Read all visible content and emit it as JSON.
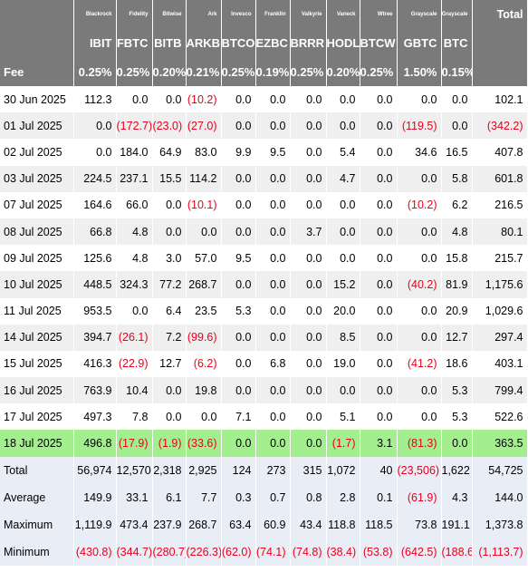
{
  "columns": [
    {
      "issuer": "Blackrock",
      "ticker": "IBIT",
      "fee": "0.25%"
    },
    {
      "issuer": "Fidelity",
      "ticker": "FBTC",
      "fee": "0.25%"
    },
    {
      "issuer": "Bitwise",
      "ticker": "BITB",
      "fee": "0.20%"
    },
    {
      "issuer": "Ark",
      "ticker": "ARKB",
      "fee": "0.21%"
    },
    {
      "issuer": "Invesco",
      "ticker": "BTCO",
      "fee": "0.25%"
    },
    {
      "issuer": "Franklin",
      "ticker": "EZBC",
      "fee": "0.19%"
    },
    {
      "issuer": "Valkyrie",
      "ticker": "BRRR",
      "fee": "0.25%"
    },
    {
      "issuer": "Vaneck",
      "ticker": "HODL",
      "fee": "0.20%"
    },
    {
      "issuer": "Wtree",
      "ticker": "BTCW",
      "fee": "0.25%"
    },
    {
      "issuer": "Grayscale",
      "ticker": "GBTC",
      "fee": "1.50%"
    },
    {
      "issuer": "Grayscale",
      "ticker": "BTC",
      "fee": "0.15%"
    }
  ],
  "header": {
    "total_label": "Total",
    "fee_label": "Fee"
  },
  "rows": [
    {
      "date": "30 Jun 2025",
      "values": [
        "112.3",
        "0.0",
        "0.0",
        "(10.2)",
        "0.0",
        "0.0",
        "0.0",
        "0.0",
        "0.0",
        "0.0",
        "0.0"
      ],
      "total": "102.1"
    },
    {
      "date": "01 Jul 2025",
      "values": [
        "0.0",
        "(172.7)",
        "(23.0)",
        "(27.0)",
        "0.0",
        "0.0",
        "0.0",
        "0.0",
        "0.0",
        "(119.5)",
        "0.0"
      ],
      "total": "(342.2)"
    },
    {
      "date": "02 Jul 2025",
      "values": [
        "0.0",
        "184.0",
        "64.9",
        "83.0",
        "9.9",
        "9.5",
        "0.0",
        "5.4",
        "0.0",
        "34.6",
        "16.5"
      ],
      "total": "407.8"
    },
    {
      "date": "03 Jul 2025",
      "values": [
        "224.5",
        "237.1",
        "15.5",
        "114.2",
        "0.0",
        "0.0",
        "0.0",
        "4.7",
        "0.0",
        "0.0",
        "5.8"
      ],
      "total": "601.8"
    },
    {
      "date": "07 Jul 2025",
      "values": [
        "164.6",
        "66.0",
        "0.0",
        "(10.1)",
        "0.0",
        "0.0",
        "0.0",
        "0.0",
        "0.0",
        "(10.2)",
        "6.2"
      ],
      "total": "216.5"
    },
    {
      "date": "08 Jul 2025",
      "values": [
        "66.8",
        "4.8",
        "0.0",
        "0.0",
        "0.0",
        "0.0",
        "3.7",
        "0.0",
        "0.0",
        "0.0",
        "4.8"
      ],
      "total": "80.1"
    },
    {
      "date": "09 Jul 2025",
      "values": [
        "125.6",
        "4.8",
        "3.0",
        "57.0",
        "9.5",
        "0.0",
        "0.0",
        "0.0",
        "0.0",
        "0.0",
        "15.8"
      ],
      "total": "215.7"
    },
    {
      "date": "10 Jul 2025",
      "values": [
        "448.5",
        "324.3",
        "77.2",
        "268.7",
        "0.0",
        "0.0",
        "0.0",
        "15.2",
        "0.0",
        "(40.2)",
        "81.9"
      ],
      "total": "1,175.6"
    },
    {
      "date": "11 Jul 2025",
      "values": [
        "953.5",
        "0.0",
        "6.4",
        "23.5",
        "5.3",
        "0.0",
        "0.0",
        "20.0",
        "0.0",
        "0.0",
        "20.9"
      ],
      "total": "1,029.6"
    },
    {
      "date": "14 Jul 2025",
      "values": [
        "394.7",
        "(26.1)",
        "7.2",
        "(99.6)",
        "0.0",
        "0.0",
        "0.0",
        "8.5",
        "0.0",
        "0.0",
        "12.7"
      ],
      "total": "297.4"
    },
    {
      "date": "15 Jul 2025",
      "values": [
        "416.3",
        "(22.9)",
        "12.7",
        "(6.2)",
        "0.0",
        "6.8",
        "0.0",
        "19.0",
        "0.0",
        "(41.2)",
        "18.6"
      ],
      "total": "403.1"
    },
    {
      "date": "16 Jul 2025",
      "values": [
        "763.9",
        "10.4",
        "0.0",
        "19.8",
        "0.0",
        "0.0",
        "0.0",
        "0.0",
        "0.0",
        "0.0",
        "5.3"
      ],
      "total": "799.4"
    },
    {
      "date": "17 Jul 2025",
      "values": [
        "497.3",
        "7.8",
        "0.0",
        "0.0",
        "7.1",
        "0.0",
        "0.0",
        "5.1",
        "0.0",
        "0.0",
        "5.3"
      ],
      "total": "522.6"
    },
    {
      "date": "18 Jul 2025",
      "highlight": true,
      "values": [
        "496.8",
        "(17.9)",
        "(1.9)",
        "(33.6)",
        "0.0",
        "0.0",
        "0.0",
        "(1.7)",
        "3.1",
        "(81.3)",
        "0.0"
      ],
      "total": "363.5"
    }
  ],
  "summary": [
    {
      "label": "Total",
      "values": [
        "56,974",
        "12,570",
        "2,318",
        "2,925",
        "124",
        "273",
        "315",
        "1,072",
        "40",
        "(23,506)",
        "1,622"
      ],
      "total": "54,725"
    },
    {
      "label": "Average",
      "values": [
        "149.9",
        "33.1",
        "6.1",
        "7.7",
        "0.3",
        "0.7",
        "0.8",
        "2.8",
        "0.1",
        "(61.9)",
        "4.3"
      ],
      "total": "144.0"
    },
    {
      "label": "Maximum",
      "values": [
        "1,119.9",
        "473.4",
        "237.9",
        "268.7",
        "63.4",
        "60.9",
        "43.4",
        "118.8",
        "118.5",
        "73.8",
        "191.1"
      ],
      "total": "1,373.8"
    },
    {
      "label": "Minimum",
      "values": [
        "(430.8)",
        "(344.7)",
        "(280.7)",
        "(226.3)",
        "(62.0)",
        "(74.1)",
        "(74.8)",
        "(38.4)",
        "(53.8)",
        "(642.5)",
        "(188.6)"
      ],
      "total": "(1,113.7)"
    }
  ],
  "colors": {
    "header_bg": "#7a7a7a",
    "negative": "#e8001c",
    "highlight": "#a3ef8f",
    "summary_bg": "#e9edf6"
  }
}
